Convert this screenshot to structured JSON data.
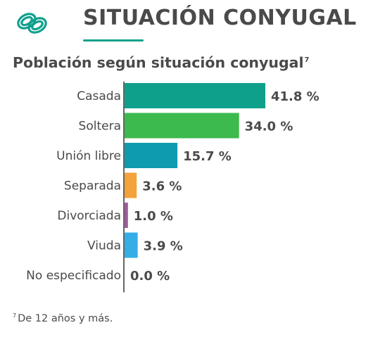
{
  "header": {
    "title": "SITUACIÓN CONYUGAL",
    "icon": "wedding-rings-icon",
    "accent_color": "#11a08e"
  },
  "subtitle": {
    "text": "Población según situación conyugal",
    "note_mark": "7"
  },
  "chart_data": {
    "type": "bar",
    "orientation": "horizontal",
    "title": "Población según situación conyugal",
    "categories": [
      "Casada",
      "Soltera",
      "Unión libre",
      "Separada",
      "Divorciada",
      "Viuda",
      "No especificado"
    ],
    "values": [
      41.8,
      34.0,
      15.7,
      3.6,
      1.0,
      3.9,
      0.0
    ],
    "value_labels": [
      "41.8 %",
      "34.0 %",
      "15.7 %",
      "3.6 %",
      "1.0 %",
      "3.9 %",
      "0.0 %"
    ],
    "colors": [
      "#0fa08c",
      "#3dba4e",
      "#0e9bb0",
      "#f4a23a",
      "#a05a9c",
      "#35aee8",
      "#999999"
    ],
    "unit": "%",
    "xlim": [
      0,
      41.8
    ],
    "grid": false,
    "legend": false
  },
  "footnote": {
    "mark": "7",
    "text": "De 12 años y más."
  }
}
